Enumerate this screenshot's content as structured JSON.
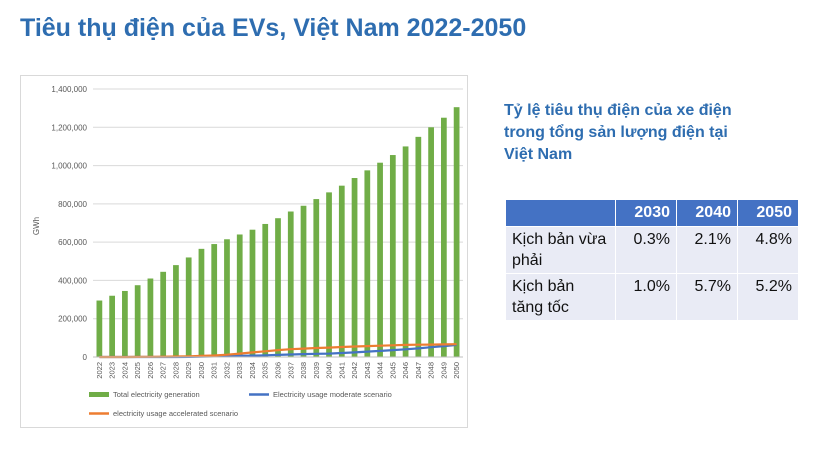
{
  "page": {
    "title": "Tiêu thụ điện của EVs, Việt Nam 2022-2050",
    "side_heading": "Tỷ lệ tiêu thụ điện của xe điện trong tổng sản lượng điện tại Việt Nam"
  },
  "table": {
    "headers": [
      "",
      "2030",
      "2040",
      "2050"
    ],
    "rows": [
      {
        "label": "Kịch bản vừa phải",
        "values": [
          "0.3%",
          "2.1%",
          "4.8%"
        ]
      },
      {
        "label": "Kịch bản tăng tốc",
        "values": [
          "1.0%",
          "5.7%",
          "5.2%"
        ]
      }
    ]
  },
  "chart_data": {
    "type": "bar",
    "title": "",
    "xlabel": "",
    "ylabel": "GWh",
    "ylim": [
      0,
      1400000
    ],
    "yticks": [
      0,
      200000,
      400000,
      600000,
      800000,
      1000000,
      1200000,
      1400000
    ],
    "ytick_labels": [
      "0",
      "200,000",
      "400,000",
      "600,000",
      "800,000",
      "1,000,000",
      "1,200,000",
      "1,400,000"
    ],
    "grid": true,
    "legend_position": "bottom",
    "categories": [
      "2022",
      "2023",
      "2024",
      "2025",
      "2026",
      "2027",
      "2028",
      "2029",
      "2030",
      "2031",
      "2032",
      "2033",
      "2034",
      "2035",
      "2036",
      "2037",
      "2038",
      "2039",
      "2040",
      "2041",
      "2042",
      "2043",
      "2044",
      "2045",
      "2046",
      "2047",
      "2048",
      "2049",
      "2050"
    ],
    "series": [
      {
        "name": "Total electricity generation",
        "kind": "bar",
        "color": "#70ad47",
        "values": [
          295000,
          320000,
          345000,
          375000,
          410000,
          445000,
          480000,
          520000,
          565000,
          590000,
          615000,
          640000,
          665000,
          695000,
          725000,
          760000,
          790000,
          825000,
          860000,
          895000,
          935000,
          975000,
          1015000,
          1055000,
          1100000,
          1150000,
          1200000,
          1250000,
          1305000
        ]
      },
      {
        "name": "Electricity usage moderate scenario",
        "kind": "line",
        "color": "#4472c4",
        "values": [
          0,
          0,
          0,
          0,
          0,
          0,
          0,
          500,
          1700,
          3000,
          4500,
          6000,
          7500,
          9000,
          11000,
          13000,
          15000,
          16500,
          18000,
          21000,
          24000,
          28000,
          32000,
          36000,
          40000,
          45000,
          51000,
          57000,
          63000
        ]
      },
      {
        "name": "electricity usage accelerated scenario",
        "kind": "line",
        "color": "#ed7d31",
        "values": [
          0,
          0,
          0,
          500,
          1000,
          1500,
          2500,
          3800,
          5650,
          8000,
          12000,
          18000,
          24000,
          30000,
          36000,
          41000,
          44000,
          47000,
          49000,
          52000,
          55000,
          57000,
          59000,
          61000,
          63000,
          64000,
          65000,
          66000,
          67000
        ]
      }
    ]
  }
}
